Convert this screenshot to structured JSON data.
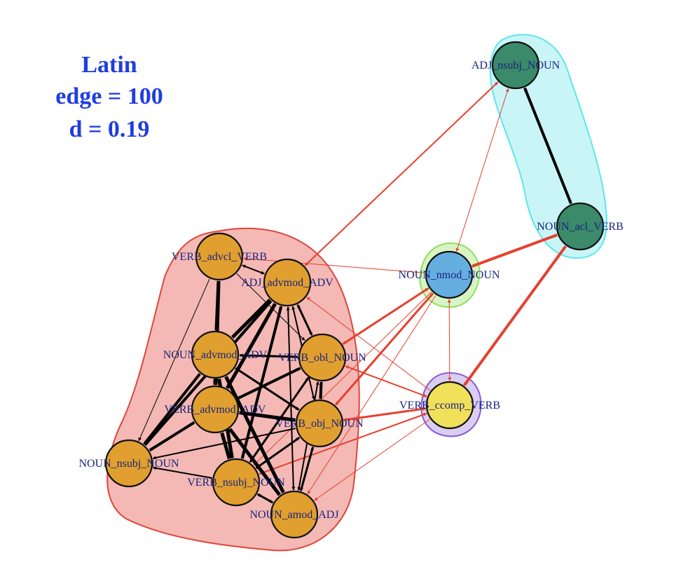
{
  "title": {
    "lines": [
      "Latin",
      "edge = 100",
      "d = 0.19"
    ],
    "color": "#1f3de0"
  },
  "colors": {
    "community_red_fill": "#f4b9b5",
    "community_red_stroke": "#e0453a",
    "community_cyan_fill": "#c9f5f7",
    "community_cyan_stroke": "#5de6ee",
    "community_green_fill": "#d8f4c6",
    "community_green_stroke": "#8fe05e",
    "community_purple_fill": "#d9cef2",
    "community_purple_stroke": "#8a5ad6",
    "node_orange": "#e09f2f",
    "node_green": "#3b8a6a",
    "node_blue": "#65aee0",
    "node_yellow": "#f0e05a",
    "edge_black": "#000000",
    "edge_red": "#e6402e"
  },
  "nodes": [
    {
      "id": "verb_advcl_verb",
      "label": "VERB_advcl_VERB",
      "group": "orange"
    },
    {
      "id": "adj_advmod_adv",
      "label": "ADJ_advmod_ADV",
      "group": "orange"
    },
    {
      "id": "noun_advmod_adv",
      "label": "NOUN_advmod_ADV",
      "group": "orange"
    },
    {
      "id": "verb_obl_noun",
      "label": "VERB_obl_NOUN",
      "group": "orange"
    },
    {
      "id": "verb_advmod_adv",
      "label": "VERB_advmod_ADV",
      "group": "orange"
    },
    {
      "id": "verb_obj_noun",
      "label": "VERB_obj_NOUN",
      "group": "orange"
    },
    {
      "id": "noun_nsubj_noun",
      "label": "NOUN_nsubj_NOUN",
      "group": "orange"
    },
    {
      "id": "verb_nsubj_noun",
      "label": "VERB_nsubj_NOUN",
      "group": "orange"
    },
    {
      "id": "noun_amod_adj",
      "label": "NOUN_amod_ADJ",
      "group": "orange"
    },
    {
      "id": "adj_nsubj_noun",
      "label": "ADJ_nsubj_NOUN",
      "group": "green"
    },
    {
      "id": "noun_acl_verb",
      "label": "NOUN_acl_VERB",
      "group": "green"
    },
    {
      "id": "noun_nmod_noun",
      "label": "NOUN_nmod_NOUN",
      "group": "blue"
    },
    {
      "id": "verb_ccomp_verb",
      "label": "VERB_ccomp_VERB",
      "group": "yellow"
    }
  ],
  "edges": [
    {
      "from": "adj_nsubj_noun",
      "to": "noun_acl_verb",
      "color": "black",
      "weight": 4,
      "dir": "both"
    },
    {
      "from": "noun_acl_verb",
      "to": "noun_nmod_noun",
      "color": "red",
      "weight": 4,
      "dir": "both"
    },
    {
      "from": "noun_acl_verb",
      "to": "verb_ccomp_verb",
      "color": "red",
      "weight": 4,
      "dir": "both"
    },
    {
      "from": "adj_nsubj_noun",
      "to": "adj_advmod_adv",
      "color": "red",
      "weight": 2,
      "dir": "both"
    },
    {
      "from": "adj_nsubj_noun",
      "to": "noun_nmod_noun",
      "color": "red",
      "weight": 1,
      "dir": "both"
    },
    {
      "from": "noun_nmod_noun",
      "to": "verb_ccomp_verb",
      "color": "red",
      "weight": 1,
      "dir": "both"
    },
    {
      "from": "noun_nmod_noun",
      "to": "verb_advcl_verb",
      "color": "red",
      "weight": 1,
      "dir": "to"
    },
    {
      "from": "noun_nmod_noun",
      "to": "verb_obl_noun",
      "color": "red",
      "weight": 3,
      "dir": "both"
    },
    {
      "from": "noun_nmod_noun",
      "to": "verb_obj_noun",
      "color": "red",
      "weight": 3,
      "dir": "both"
    },
    {
      "from": "noun_nmod_noun",
      "to": "verb_nsubj_noun",
      "color": "red",
      "weight": 1,
      "dir": "to"
    },
    {
      "from": "noun_nmod_noun",
      "to": "noun_amod_adj",
      "color": "red",
      "weight": 1,
      "dir": "to"
    },
    {
      "from": "verb_ccomp_verb",
      "to": "verb_obl_noun",
      "color": "red",
      "weight": 2,
      "dir": "both"
    },
    {
      "from": "verb_ccomp_verb",
      "to": "verb_obj_noun",
      "color": "red",
      "weight": 3,
      "dir": "both"
    },
    {
      "from": "verb_ccomp_verb",
      "to": "verb_nsubj_noun",
      "color": "red",
      "weight": 2,
      "dir": "both"
    },
    {
      "from": "verb_ccomp_verb",
      "to": "noun_amod_adj",
      "color": "red",
      "weight": 1,
      "dir": "to"
    },
    {
      "from": "verb_ccomp_verb",
      "to": "adj_advmod_adv",
      "color": "red",
      "weight": 1,
      "dir": "to"
    },
    {
      "from": "verb_advcl_verb",
      "to": "adj_advmod_adv",
      "color": "black",
      "weight": 2,
      "dir": "both"
    },
    {
      "from": "verb_advcl_verb",
      "to": "noun_advmod_adv",
      "color": "black",
      "weight": 4,
      "dir": "both"
    },
    {
      "from": "verb_advcl_verb",
      "to": "verb_advmod_adv",
      "color": "black",
      "weight": 5,
      "dir": "both"
    },
    {
      "from": "verb_advcl_verb",
      "to": "verb_obl_noun",
      "color": "black",
      "weight": 1,
      "dir": "to"
    },
    {
      "from": "verb_advcl_verb",
      "to": "noun_nsubj_noun",
      "color": "black",
      "weight": 1,
      "dir": "to"
    },
    {
      "from": "adj_advmod_adv",
      "to": "noun_advmod_adv",
      "color": "black",
      "weight": 5,
      "dir": "both"
    },
    {
      "from": "adj_advmod_adv",
      "to": "verb_advmod_adv",
      "color": "black",
      "weight": 5,
      "dir": "both"
    },
    {
      "from": "adj_advmod_adv",
      "to": "verb_obl_noun",
      "color": "black",
      "weight": 3,
      "dir": "both"
    },
    {
      "from": "adj_advmod_adv",
      "to": "verb_obj_noun",
      "color": "black",
      "weight": 2,
      "dir": "both"
    },
    {
      "from": "adj_advmod_adv",
      "to": "noun_nsubj_noun",
      "color": "black",
      "weight": 4,
      "dir": "to"
    },
    {
      "from": "adj_advmod_adv",
      "to": "verb_nsubj_noun",
      "color": "black",
      "weight": 4,
      "dir": "both"
    },
    {
      "from": "adj_advmod_adv",
      "to": "noun_amod_adj",
      "color": "black",
      "weight": 2,
      "dir": "both"
    },
    {
      "from": "noun_advmod_adv",
      "to": "verb_obl_noun",
      "color": "black",
      "weight": 3,
      "dir": "both"
    },
    {
      "from": "noun_advmod_adv",
      "to": "verb_advmod_adv",
      "color": "black",
      "weight": 5,
      "dir": "both"
    },
    {
      "from": "noun_advmod_adv",
      "to": "verb_obj_noun",
      "color": "black",
      "weight": 3,
      "dir": "both"
    },
    {
      "from": "noun_advmod_adv",
      "to": "noun_nsubj_noun",
      "color": "black",
      "weight": 4,
      "dir": "to"
    },
    {
      "from": "noun_advmod_adv",
      "to": "verb_nsubj_noun",
      "color": "black",
      "weight": 5,
      "dir": "both"
    },
    {
      "from": "noun_advmod_adv",
      "to": "noun_amod_adj",
      "color": "black",
      "weight": 5,
      "dir": "both"
    },
    {
      "from": "verb_obl_noun",
      "to": "verb_advmod_adv",
      "color": "black",
      "weight": 4,
      "dir": "both"
    },
    {
      "from": "verb_obl_noun",
      "to": "verb_obj_noun",
      "color": "black",
      "weight": 4,
      "dir": "both"
    },
    {
      "from": "verb_obl_noun",
      "to": "verb_nsubj_noun",
      "color": "black",
      "weight": 3,
      "dir": "both"
    },
    {
      "from": "verb_obl_noun",
      "to": "noun_amod_adj",
      "color": "black",
      "weight": 2,
      "dir": "both"
    },
    {
      "from": "verb_advmod_adv",
      "to": "verb_obj_noun",
      "color": "black",
      "weight": 5,
      "dir": "both"
    },
    {
      "from": "verb_advmod_adv",
      "to": "noun_nsubj_noun",
      "color": "black",
      "weight": 4,
      "dir": "to"
    },
    {
      "from": "verb_advmod_adv",
      "to": "verb_nsubj_noun",
      "color": "black",
      "weight": 5,
      "dir": "both"
    },
    {
      "from": "verb_advmod_adv",
      "to": "noun_amod_adj",
      "color": "black",
      "weight": 5,
      "dir": "both"
    },
    {
      "from": "verb_obj_noun",
      "to": "noun_nsubj_noun",
      "color": "black",
      "weight": 2,
      "dir": "to"
    },
    {
      "from": "verb_obj_noun",
      "to": "verb_nsubj_noun",
      "color": "black",
      "weight": 3,
      "dir": "both"
    },
    {
      "from": "verb_obj_noun",
      "to": "noun_amod_adj",
      "color": "black",
      "weight": 3,
      "dir": "both"
    },
    {
      "from": "verb_nsubj_noun",
      "to": "noun_nsubj_noun",
      "color": "black",
      "weight": 2,
      "dir": "to"
    },
    {
      "from": "verb_nsubj_noun",
      "to": "noun_amod_adj",
      "color": "black",
      "weight": 3,
      "dir": "both"
    }
  ]
}
